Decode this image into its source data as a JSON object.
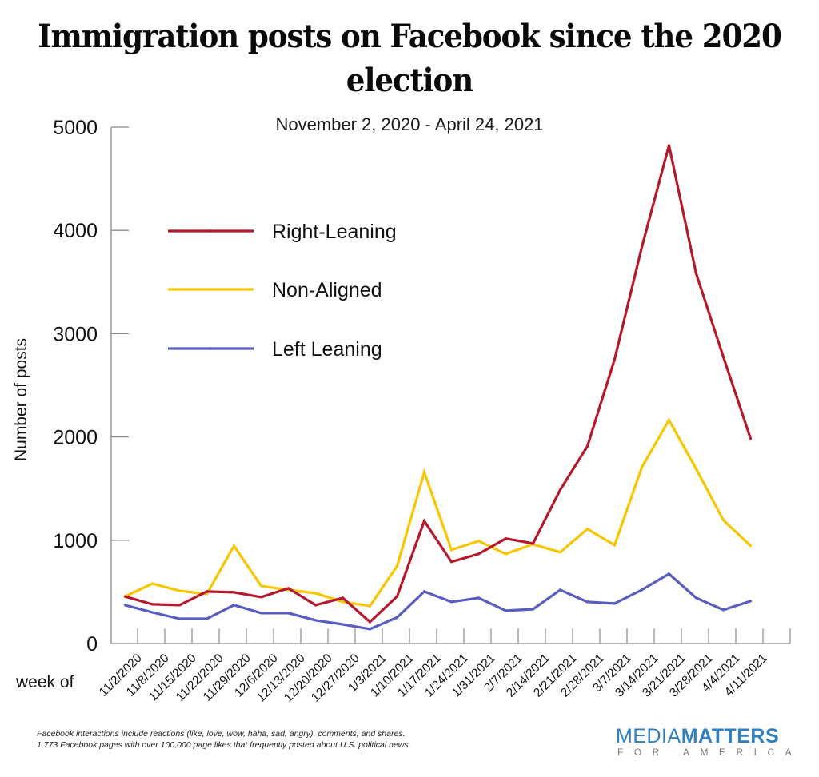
{
  "header": {
    "title": "Immigration posts on Facebook since the 2020 election",
    "title_line1": "Immigration posts on Facebook since the 2020",
    "title_line2": "election",
    "subtitle": "November 2, 2020 - April 24, 2021"
  },
  "chart_data": {
    "type": "line",
    "title": "Immigration posts on Facebook since the 2020 election",
    "subtitle": "November 2, 2020 - April 24, 2021",
    "xlabel": "week of",
    "ylabel": "Number of posts",
    "ylim": [
      0,
      5000
    ],
    "yticks": [
      0,
      1000,
      2000,
      3000,
      4000,
      5000
    ],
    "ytick_labels": [
      "0",
      "1000",
      "2000",
      "3000",
      "4000",
      "5000"
    ],
    "grid": false,
    "legend_position": "upper-left",
    "categories": [
      "11/2/2020",
      "11/8/2020",
      "11/15/2020",
      "11/22/2020",
      "11/29/2020",
      "12/6/2020",
      "12/13/2020",
      "12/20/2020",
      "12/27/2020",
      "1/3/2021",
      "1/10/2021",
      "1/17/2021",
      "1/24/2021",
      "1/31/2021",
      "2/7/2021",
      "2/14/2021",
      "2/21/2021",
      "2/28/2021",
      "3/7/2021",
      "3/14/2021",
      "3/21/2021",
      "3/28/2021",
      "4/4/2021",
      "4/11/2021"
    ],
    "series": [
      {
        "name": "Right-Leaning",
        "color": "#b5192e",
        "values": [
          455,
          380,
          372,
          504,
          496,
          450,
          535,
          372,
          442,
          209,
          457,
          1186,
          791,
          868,
          1016,
          969,
          1488,
          1910,
          2752,
          3837,
          4822,
          3581,
          2775,
          1984
        ]
      },
      {
        "name": "Non-Aligned",
        "color": "#f7c600",
        "values": [
          457,
          580,
          511,
          480,
          946,
          558,
          519,
          488,
          403,
          364,
          750,
          1659,
          907,
          992,
          868,
          961,
          884,
          1109,
          953,
          1705,
          2163,
          1690,
          1194,
          946
        ]
      },
      {
        "name": "Left Leaning",
        "color": "#5a5cc0",
        "values": [
          372,
          302,
          240,
          240,
          372,
          295,
          295,
          225,
          186,
          140,
          252,
          504,
          403,
          442,
          318,
          333,
          519,
          403,
          388,
          519,
          674,
          442,
          326,
          411
        ]
      }
    ]
  },
  "footnote": {
    "line1": "Facebook interactions include reactions (like, love, wow, haha, sad, angry), comments, and shares.",
    "line2": "1,773 Facebook pages with over 100,000 page likes that frequently posted about U.S. political news."
  },
  "logo": {
    "media": "MEDIA",
    "matters": "MATTERS",
    "for_america": "FOR AMERICA",
    "color": "#2f7fc1"
  }
}
